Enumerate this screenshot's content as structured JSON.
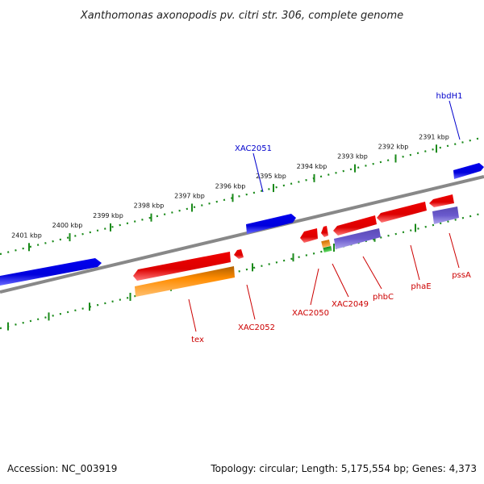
{
  "title": "Xanthomonas axonopodis pv. citri str. 306, complete genome",
  "accession": "Accession: NC_003919",
  "info": "Topology: circular; Length: 5,175,554 bp; Genes: 4,373",
  "ticks": [
    "2391 kbp",
    "2392 kbp",
    "2393 kbp",
    "2394 kbp",
    "2395 kbp",
    "2396 kbp",
    "2397 kbp",
    "2398 kbp",
    "2399 kbp",
    "2400 kbp",
    "2401 kbp"
  ],
  "labels": {
    "hbdH1": "hbdH1",
    "XAC2051": "XAC2051",
    "tex": "tex",
    "XAC2052": "XAC2052",
    "XAC2050": "XAC2050",
    "XAC2049": "XAC2049",
    "phbC": "phbC",
    "phaE": "phaE",
    "pssA": "pssA"
  },
  "colors": {
    "forward_cds": "#0000ee",
    "reverse_cds": "#ee0000",
    "rna": "#ff8c00",
    "other": "#6a5acd",
    "trna": "#22bb22",
    "backbone": "#888888",
    "ticks": "#1a8a1a"
  }
}
